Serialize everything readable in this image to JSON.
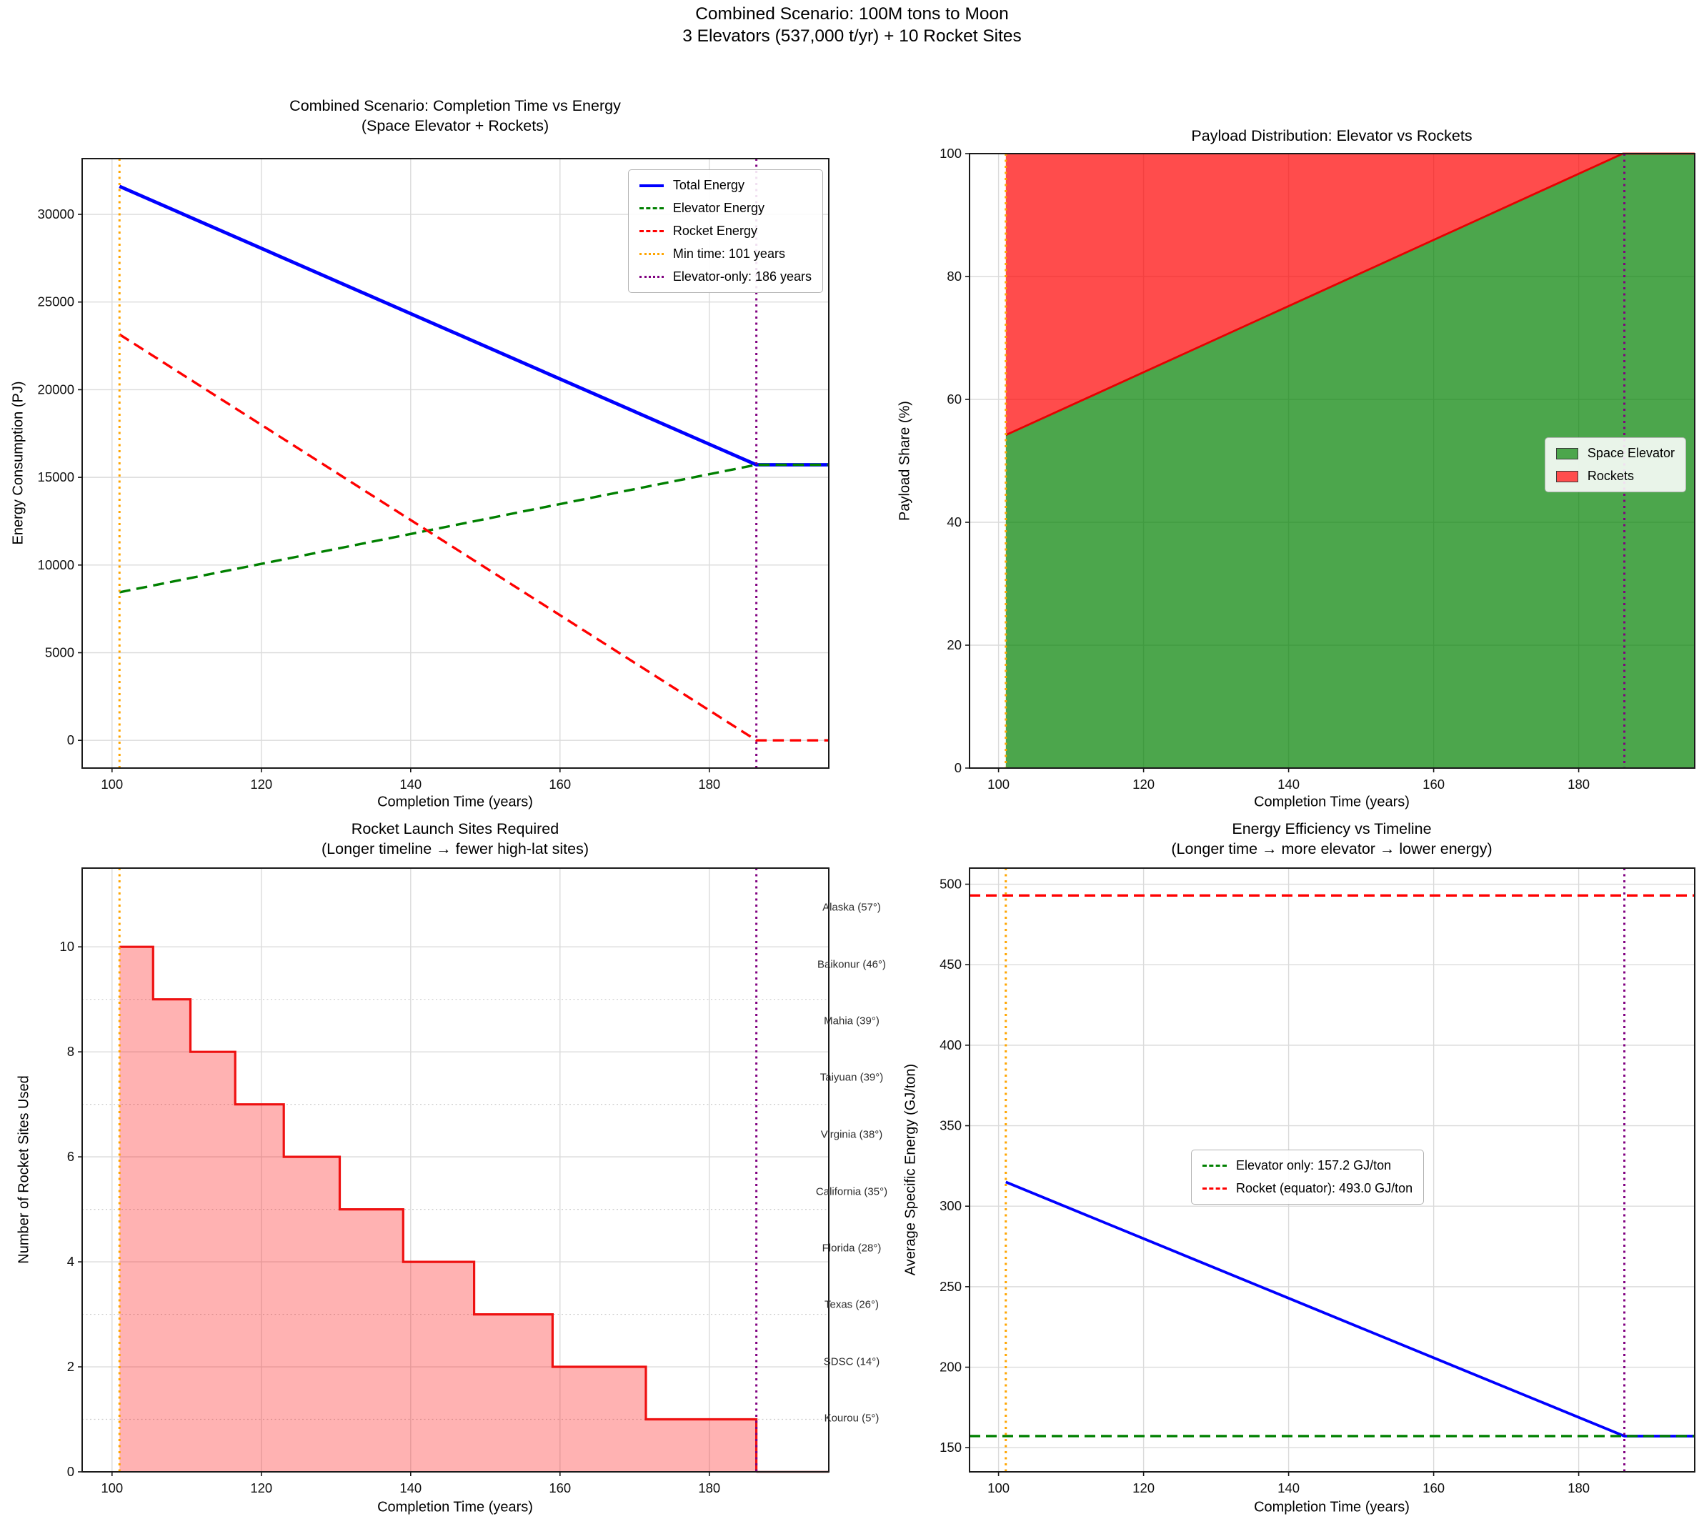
{
  "suptitle": {
    "line1": "Combined Scenario: 100M tons to Moon",
    "line2": "3 Elevators (537,000 t/yr) + 10 Rocket Sites"
  },
  "colors": {
    "total_line": "#0000ff",
    "elevator_line": "#008000",
    "rocket_line": "#ff0000",
    "min_time_vline": "#ffa500",
    "elevator_only_vline": "#800080",
    "elevator_area": "#4ca64c",
    "rocket_area": "#ff4d4d",
    "sites_fill": "#ffbfbf",
    "grid": "#dbdbdb"
  },
  "chart_data": [
    {
      "id": "energy",
      "type": "line",
      "title": "Combined Scenario: Completion Time vs Energy",
      "subtitle": "(Space Elevator + Rockets)",
      "xlabel": "Completion Time (years)",
      "ylabel": "Energy Consumption (PJ)",
      "xlim": [
        96,
        196
      ],
      "ylim": [
        -1580,
        33180
      ],
      "xticks": [
        100,
        120,
        140,
        160,
        180
      ],
      "yticks": [
        0,
        5000,
        10000,
        15000,
        20000,
        25000,
        30000
      ],
      "series": [
        {
          "name": "Total Energy",
          "color": "#0000ff",
          "style": "solid",
          "width": 4.8,
          "points": [
            [
              101,
              31600
            ],
            [
              186.3,
              15720
            ],
            [
              196,
              15720
            ]
          ]
        },
        {
          "name": "Elevator Energy",
          "color": "#008000",
          "style": "dashed",
          "width": 3.4,
          "points": [
            [
              101,
              8450
            ],
            [
              186.3,
              15720
            ],
            [
              196,
              15720
            ]
          ]
        },
        {
          "name": "Rocket Energy",
          "color": "#ff0000",
          "style": "dashed",
          "width": 3.4,
          "points": [
            [
              101,
              23150
            ],
            [
              186.3,
              0
            ],
            [
              196,
              0
            ]
          ]
        }
      ],
      "vlines": [
        {
          "name": "Min time: 101 years",
          "x": 101,
          "color": "#ffa500"
        },
        {
          "name": "Elevator-only: 186 years",
          "x": 186.3,
          "color": "#800080"
        }
      ]
    },
    {
      "id": "payload",
      "type": "area",
      "title": "Payload Distribution: Elevator vs Rockets",
      "xlabel": "Completion Time (years)",
      "ylabel": "Payload Share (%)",
      "xlim": [
        96,
        196
      ],
      "ylim": [
        0,
        100
      ],
      "xticks": [
        100,
        120,
        140,
        160,
        180
      ],
      "yticks": [
        0,
        20,
        40,
        60,
        80,
        100
      ],
      "x_start": 101,
      "x_end": 196,
      "elevator_share_points": [
        [
          101,
          54.2
        ],
        [
          186.1,
          100
        ],
        [
          196,
          100
        ]
      ],
      "series": [
        {
          "name": "Space Elevator",
          "fill": "rgba(0,128,0,0.70)"
        },
        {
          "name": "Rockets",
          "fill": "rgba(255,0,0,0.70)"
        }
      ],
      "boundary_color": "#e60000",
      "vlines": [
        {
          "name": "Min time: 101 years",
          "x": 101,
          "color": "#ffa500"
        },
        {
          "name": "Elevator-only: 186 years",
          "x": 186.3,
          "color": "#800080"
        }
      ]
    },
    {
      "id": "sites",
      "type": "step",
      "title": "Rocket Launch Sites Required",
      "subtitle": "(Longer timeline → fewer high-lat sites)",
      "xlabel": "Completion Time (years)",
      "ylabel": "Number of Rocket Sites Used",
      "xlim": [
        96,
        196
      ],
      "ylim": [
        0,
        11.5
      ],
      "xticks": [
        100,
        120,
        140,
        160,
        180
      ],
      "yticks": [
        0,
        2,
        4,
        6,
        8,
        10
      ],
      "yminor": [
        1,
        3,
        5,
        7,
        9
      ],
      "step_x": [
        101,
        105.5,
        110.5,
        116.5,
        123,
        130.5,
        139,
        148.5,
        159,
        171.5,
        186.3
      ],
      "step_y": [
        10,
        9,
        8,
        7,
        6,
        5,
        4,
        3,
        2,
        1
      ],
      "x_end": 196,
      "line_color": "#ee1111",
      "fill": "rgba(255,0,0,0.30)",
      "baseline_color": "#8b0000",
      "site_labels": [
        {
          "label": "Alaska (57°)",
          "y": 10.75
        },
        {
          "label": "Baikonur (46°)",
          "y": 9.67
        },
        {
          "label": "Mahia (39°)",
          "y": 8.59
        },
        {
          "label": "Taiyuan (39°)",
          "y": 7.51
        },
        {
          "label": "Virginia (38°)",
          "y": 6.43
        },
        {
          "label": "California (35°)",
          "y": 5.34
        },
        {
          "label": "Florida (28°)",
          "y": 4.26
        },
        {
          "label": "Texas (26°)",
          "y": 3.18
        },
        {
          "label": "SDSC (14°)",
          "y": 2.1
        },
        {
          "label": "Kourou (5°)",
          "y": 1.02
        }
      ],
      "vlines": [
        {
          "name": "Min time: 101 years",
          "x": 101,
          "color": "#ffa500"
        },
        {
          "name": "Elevator-only: 186 years",
          "x": 186.3,
          "color": "#800080"
        }
      ]
    },
    {
      "id": "efficiency",
      "type": "line",
      "title": "Energy Efficiency vs Timeline",
      "subtitle": "(Longer time → more elevator → lower energy)",
      "xlabel": "Completion Time (years)",
      "ylabel": "Average Specific Energy (GJ/ton)",
      "xlim": [
        96,
        196
      ],
      "ylim": [
        135,
        510
      ],
      "xticks": [
        100,
        120,
        140,
        160,
        180
      ],
      "yticks": [
        150,
        200,
        250,
        300,
        350,
        400,
        450,
        500
      ],
      "series": [
        {
          "name": "Average specific energy",
          "color": "#0000ff",
          "style": "solid",
          "width": 3.8,
          "points": [
            [
              101,
              315
            ],
            [
              186.3,
              157.2
            ],
            [
              196,
              157.2
            ]
          ]
        }
      ],
      "hlines": [
        {
          "name": "Elevator only: 157.2 GJ/ton",
          "y": 157.2,
          "color": "#008000"
        },
        {
          "name": "Rocket (equator): 493.0 GJ/ton",
          "y": 493.0,
          "color": "#ff0000"
        }
      ],
      "vlines": [
        {
          "name": "Min time: 101 years",
          "x": 101,
          "color": "#ffa500"
        },
        {
          "name": "Elevator-only: 186 years",
          "x": 186.3,
          "color": "#800080"
        }
      ]
    }
  ],
  "legends": {
    "energy": {
      "items": [
        {
          "label": "Total Energy",
          "swatch": "line-solid",
          "color": "#0000ff"
        },
        {
          "label": "Elevator Energy",
          "swatch": "line-dashed",
          "color": "#008000"
        },
        {
          "label": "Rocket Energy",
          "swatch": "line-dashed",
          "color": "#ff0000"
        },
        {
          "label": "Min time: 101 years",
          "swatch": "line-dotted",
          "color": "#ffa500"
        },
        {
          "label": "Elevator-only: 186 years",
          "swatch": "line-dotted",
          "color": "#800080"
        }
      ]
    },
    "payload": {
      "items": [
        {
          "label": "Space Elevator",
          "swatch": "patch",
          "color": "#4ca64c"
        },
        {
          "label": "Rockets",
          "swatch": "patch",
          "color": "#ff4d4d"
        }
      ]
    },
    "efficiency": {
      "items": [
        {
          "label": "Elevator only: 157.2 GJ/ton",
          "swatch": "line-dashed",
          "color": "#008000"
        },
        {
          "label": "Rocket (equator): 493.0 GJ/ton",
          "swatch": "line-dashed",
          "color": "#ff0000"
        }
      ]
    }
  }
}
